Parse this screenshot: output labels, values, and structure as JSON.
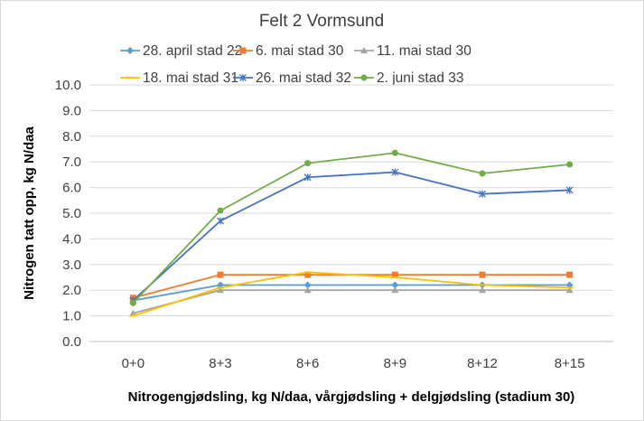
{
  "chart_data": {
    "type": "line",
    "title": "Felt 2 Vormsund",
    "xlabel": "Nitrogengjødsling, kg N/daa, vårgjødsling + delgjødsling (stadium 30)",
    "ylabel": "Nitrogen tatt opp, kg N/daa",
    "categories": [
      "0+0",
      "8+3",
      "8+6",
      "8+9",
      "8+12",
      "8+15"
    ],
    "ylim": [
      0,
      10
    ],
    "yticks": [
      "0.0",
      "1.0",
      "2.0",
      "3.0",
      "4.0",
      "5.0",
      "6.0",
      "7.0",
      "8.0",
      "9.0",
      "10.0"
    ],
    "grid": true,
    "legend_position": "top",
    "series": [
      {
        "name": "28. april stad 22",
        "color": "#5B9BD5",
        "marker": "diamond",
        "values": [
          1.6,
          2.2,
          2.2,
          2.2,
          2.2,
          2.2
        ]
      },
      {
        "name": "6. mai stad 30",
        "color": "#ED7D31",
        "marker": "square",
        "values": [
          1.7,
          2.6,
          2.6,
          2.6,
          2.6,
          2.6
        ]
      },
      {
        "name": "11. mai stad 30",
        "color": "#A5A5A5",
        "marker": "triangle",
        "values": [
          1.1,
          2.0,
          2.0,
          2.0,
          2.0,
          2.0
        ]
      },
      {
        "name": "18. mai stad 31",
        "color": "#FFC000",
        "marker": "dash",
        "values": [
          1.0,
          2.1,
          2.7,
          2.5,
          2.2,
          2.1
        ]
      },
      {
        "name": "26. mai stad 32",
        "color": "#4472C4",
        "marker": "star",
        "values": [
          1.6,
          4.7,
          6.4,
          6.6,
          5.75,
          5.9
        ]
      },
      {
        "name": "2. juni stad 33",
        "color": "#70AD47",
        "marker": "circle",
        "values": [
          1.5,
          5.1,
          6.95,
          7.35,
          6.55,
          6.9
        ]
      }
    ]
  }
}
